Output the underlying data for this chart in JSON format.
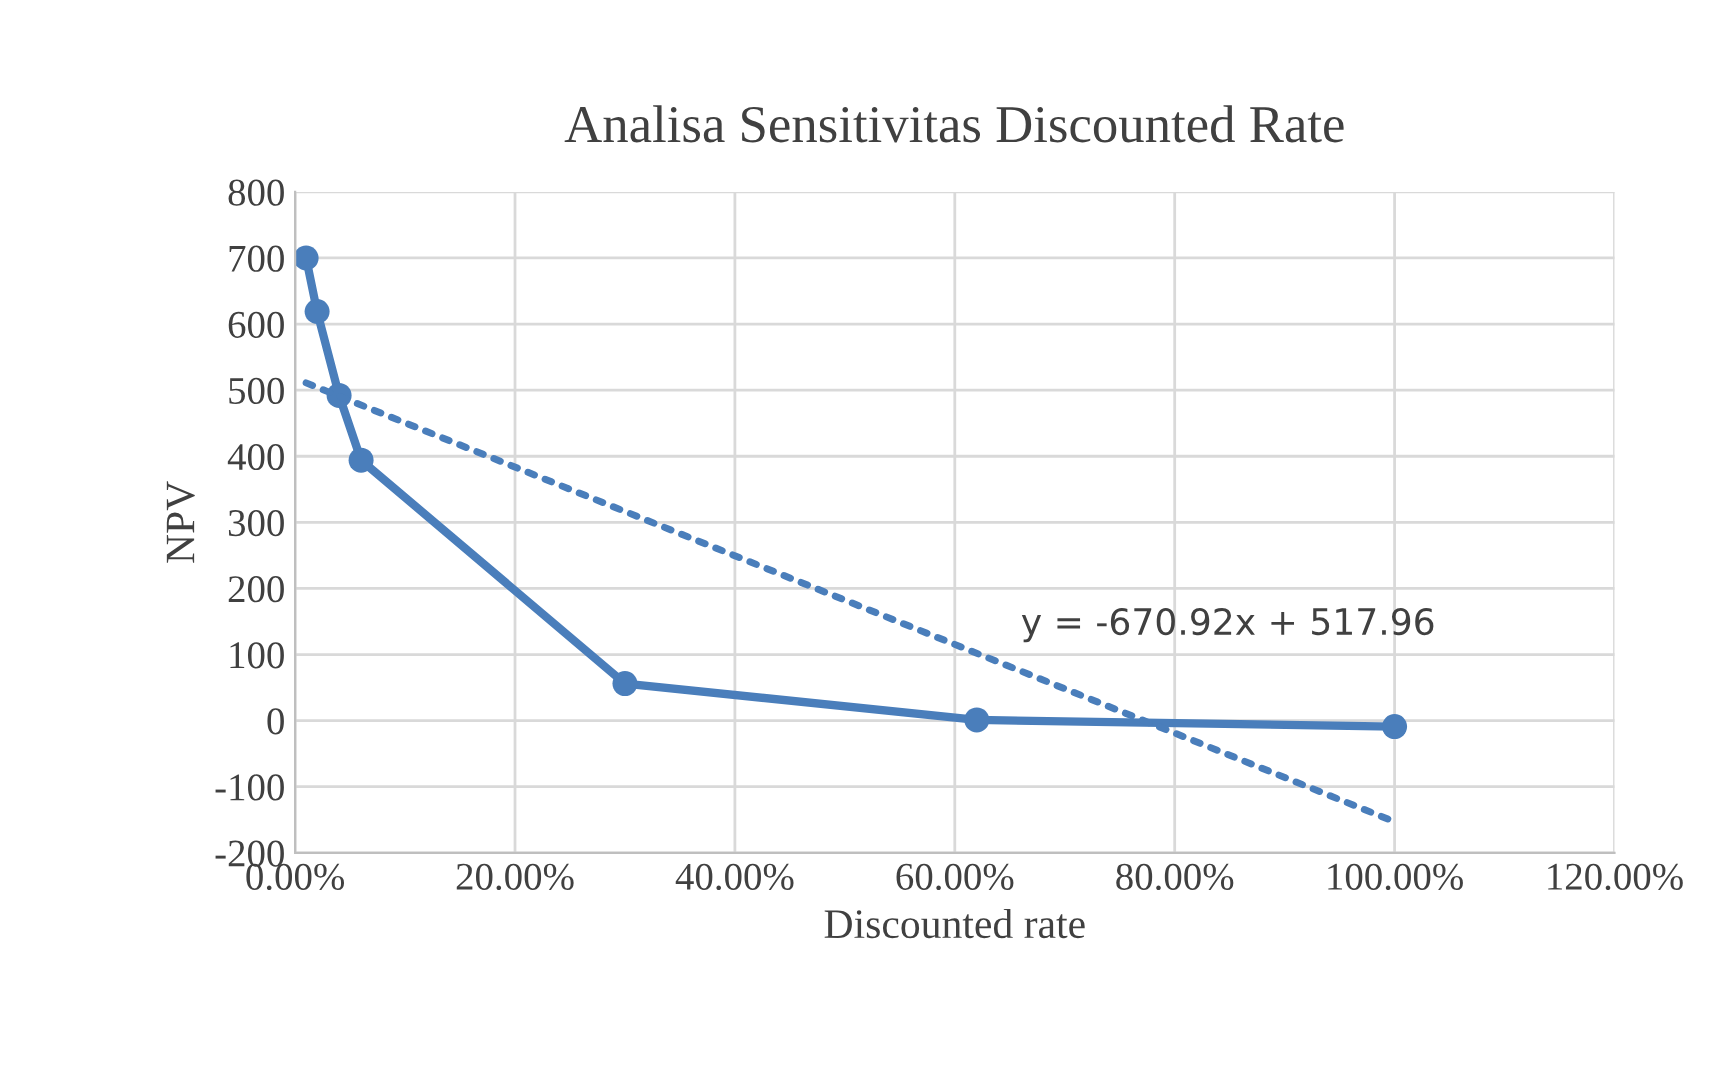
{
  "chart_data": {
    "type": "line",
    "title": "Analisa Sensitivitas Discounted Rate",
    "xlabel": "Discounted rate",
    "ylabel": "NPV",
    "x": [
      0.01,
      0.02,
      0.04,
      0.06,
      0.3,
      0.62,
      1.0
    ],
    "series": [
      {
        "color": "#4a7ebb",
        "values": [
          700,
          619,
          492,
          394,
          56,
          1,
          -9
        ],
        "marker": "circle",
        "line_style": "solid"
      },
      {
        "type": "line",
        "color": "#4a7ebb",
        "x": [
          0.01,
          1.0
        ],
        "values": [
          511,
          -153
        ],
        "marker": "none",
        "line_style": "dotted"
      }
    ],
    "annotations": [
      "y = -670.92x + 517.96"
    ],
    "xlim": [
      0,
      1.2
    ],
    "xticks": [
      {
        "value": 0,
        "label": "0.00%"
      },
      {
        "value": 0.2,
        "label": "20.00%"
      },
      {
        "value": 0.4,
        "label": "40.00%"
      },
      {
        "value": 0.6,
        "label": "60.00%"
      },
      {
        "value": 0.8,
        "label": "80.00%"
      },
      {
        "value": 1.0,
        "label": "100.00%"
      },
      {
        "value": 1.2,
        "label": "120.00%"
      }
    ],
    "ylim": [
      -200,
      800
    ],
    "yticks": [
      -200,
      -100,
      0,
      100,
      200,
      300,
      400,
      500,
      600,
      700,
      800
    ],
    "grid": true,
    "legend": false
  }
}
